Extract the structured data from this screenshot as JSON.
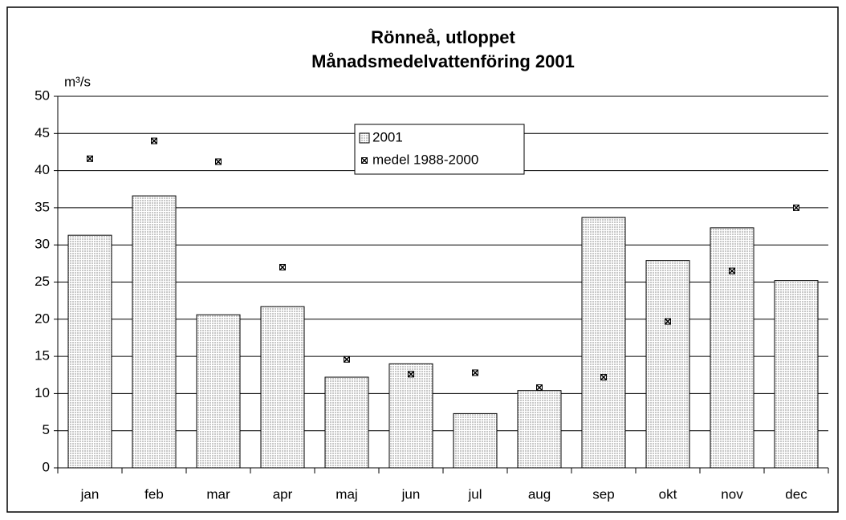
{
  "chart_data": {
    "type": "bar",
    "title": [
      "Rönneå, utloppet",
      "Månadsmedelvattenföring 2001"
    ],
    "y_label": "m³/s",
    "categories": [
      "jan",
      "feb",
      "mar",
      "apr",
      "maj",
      "jun",
      "jul",
      "aug",
      "sep",
      "okt",
      "nov",
      "dec"
    ],
    "series": [
      {
        "name": "2001",
        "type": "bar",
        "color": "#c8c8c8",
        "values": [
          31.3,
          36.6,
          20.6,
          21.7,
          12.2,
          14.0,
          7.3,
          10.4,
          33.7,
          27.9,
          32.3,
          25.2
        ]
      },
      {
        "name": "medel 1988-2000",
        "type": "scatter",
        "color": "#000000",
        "values": [
          41.6,
          44.0,
          41.2,
          27.0,
          14.6,
          12.6,
          12.8,
          10.8,
          12.2,
          19.7,
          26.5,
          35.0
        ]
      }
    ],
    "ylim": [
      0,
      50
    ],
    "yticks": [
      0,
      5,
      10,
      15,
      20,
      25,
      30,
      35,
      40,
      45,
      50
    ],
    "grid": true
  }
}
